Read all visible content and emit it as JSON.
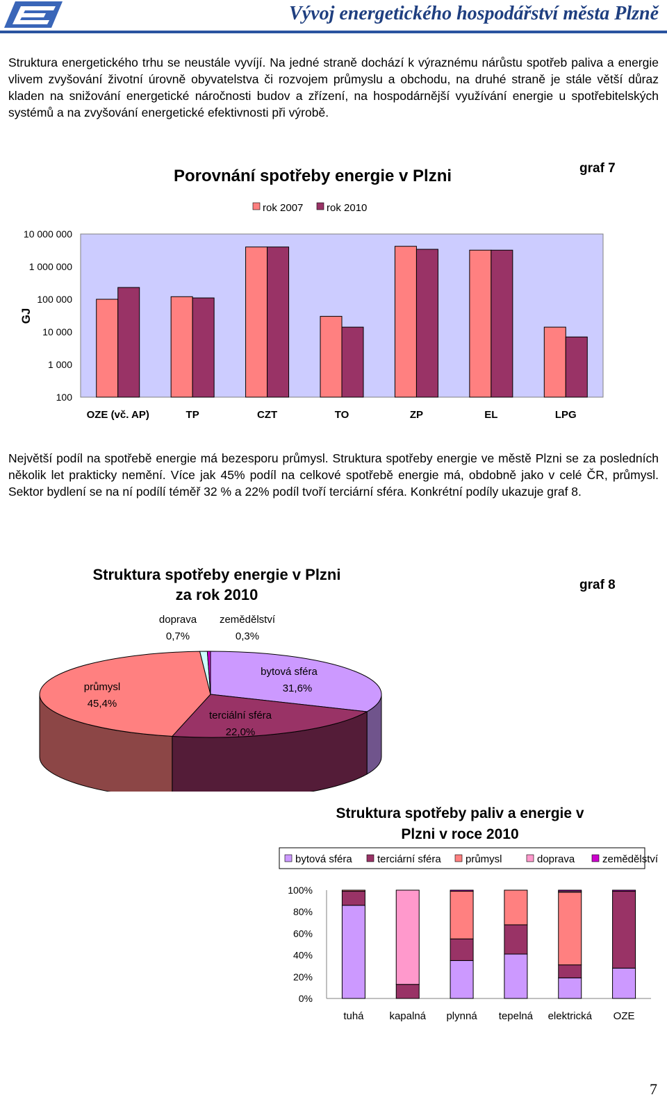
{
  "header": {
    "title": "Vývoj energetického hospodářství města Plzně"
  },
  "intro_paragraph": "Struktura energetického trhu se neustále vyvíjí. Na jedné straně dochází k výraznému nárůstu spotřeb paliva a energie vlivem zvyšování životní úrovně obyvatelstva či rozvojem průmyslu a obchodu, na druhé straně je stále větší důraz kladen na snižování energetické náročnosti budov a zřízení, na hospodárnější využívání energie u spotřebitelských systémů a na zvyšování energetické efektivnosti při výrobě.",
  "middle_paragraph": "Největší podíl na spotřebě energie má bezesporu průmysl. Struktura spotřeby energie ve městě Plzni se za posledních několik let prakticky nemění. Více jak 45% podíl na celkové spotřebě energie má, obdobně jako v celé ČR, průmysl. Sektor bydlení se na ní podílí téměř 32 % a 22% podíl tvoří terciární sféra. Konkrétní podíly ukazuje graf 8.",
  "graph7_label": "graf 7",
  "graph8_label": "graf 8",
  "page_number": "7",
  "chart_data": [
    {
      "type": "bar",
      "title": "Porovnání spotřeby energie v Plzni",
      "ylabel": "GJ",
      "yscale": "log",
      "ylim": [
        100,
        10000000
      ],
      "yticks": [
        "100",
        "1 000",
        "10 000",
        "100 000",
        "1 000 000",
        "10 000 000"
      ],
      "legend_position": "top",
      "categories": [
        "OZE (vč. AP)",
        "TP",
        "CZT",
        "TO",
        "ZP",
        "EL",
        "LPG"
      ],
      "series": [
        {
          "name": "rok 2007",
          "color": "#ff8080",
          "values": [
            100000,
            120000,
            4000000,
            30000,
            4200000,
            3200000,
            14000
          ]
        },
        {
          "name": "rok 2010",
          "color": "#993366",
          "values": [
            230000,
            110000,
            4000000,
            14000,
            3400000,
            3200000,
            7000
          ]
        }
      ],
      "plot_background": "#ccccff"
    },
    {
      "type": "pie",
      "title": "Struktura spotřeby energie v Plzni za rok 2010",
      "slices": [
        {
          "label": "bytová sféra",
          "value": 31.6,
          "value_label": "31,6%",
          "color": "#cc99ff"
        },
        {
          "label": "terciální sféra",
          "value": 22.0,
          "value_label": "22,0%",
          "color": "#993366"
        },
        {
          "label": "průmysl",
          "value": 45.4,
          "value_label": "45,4%",
          "color": "#ff8080"
        },
        {
          "label": "doprava",
          "value": 0.7,
          "value_label": "0,7%",
          "color": "#ccffff"
        },
        {
          "label": "zemědělství",
          "value": 0.3,
          "value_label": "0,3%",
          "color": "#cc00cc"
        }
      ]
    },
    {
      "type": "bar",
      "stacked": "percent",
      "title": "Struktura spotřeby paliv a energie v Plzni v roce 2010",
      "legend_position": "top",
      "yticks": [
        "0%",
        "20%",
        "40%",
        "60%",
        "80%",
        "100%"
      ],
      "ylim": [
        0,
        100
      ],
      "categories": [
        "tuhá",
        "kapalná",
        "plynná",
        "tepelná",
        "elektrická",
        "OZE"
      ],
      "series": [
        {
          "name": "bytová sféra",
          "color": "#cc99ff",
          "values": [
            86,
            0,
            35,
            41,
            19,
            28
          ]
        },
        {
          "name": "terciární sféra",
          "color": "#993366",
          "values": [
            13,
            13,
            20,
            27,
            12,
            71
          ]
        },
        {
          "name": "průmysl",
          "color": "#ff8080",
          "values": [
            1,
            0,
            44,
            32,
            67,
            0
          ]
        },
        {
          "name": "doprava",
          "color": "#ff99cc",
          "values": [
            0,
            87,
            0,
            0,
            1,
            0
          ]
        },
        {
          "name": "zemědělství",
          "color": "#cc00cc",
          "values": [
            0,
            0,
            1,
            0,
            1,
            1
          ]
        }
      ]
    }
  ]
}
